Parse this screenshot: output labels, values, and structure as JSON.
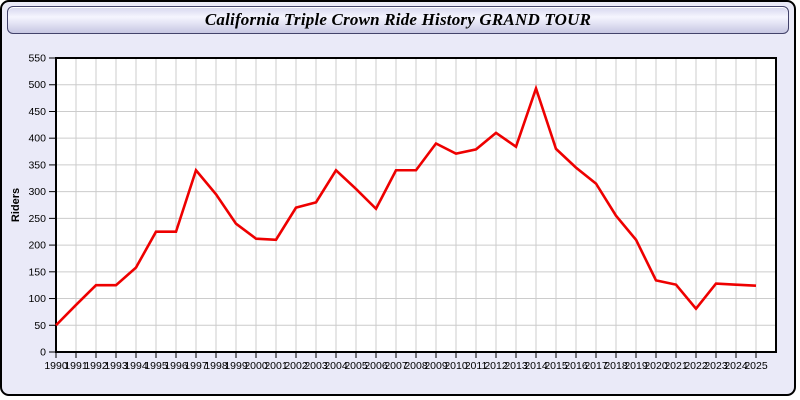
{
  "window": {
    "title": "California Triple Crown Ride History GRAND TOUR"
  },
  "chart_data": {
    "type": "line",
    "title": "California Triple Crown Ride History GRAND TOUR",
    "xlabel": "",
    "ylabel": "Riders",
    "x": [
      1990,
      1991,
      1992,
      1993,
      1994,
      1995,
      1996,
      1997,
      1998,
      1999,
      2000,
      2001,
      2002,
      2003,
      2004,
      2005,
      2006,
      2007,
      2008,
      2009,
      2010,
      2011,
      2012,
      2013,
      2014,
      2015,
      2016,
      2017,
      2018,
      2019,
      2020,
      2021,
      2022,
      2023,
      2024,
      2025
    ],
    "series": [
      {
        "name": "Riders",
        "values": [
          50,
          88,
          125,
          125,
          158,
          225,
          225,
          340,
          295,
          240,
          212,
          210,
          270,
          280,
          340,
          305,
          268,
          340,
          340,
          390,
          371,
          379,
          410,
          384,
          493,
          380,
          345,
          315,
          255,
          210,
          134,
          126,
          81,
          128,
          126,
          124
        ]
      }
    ],
    "ylim": [
      0,
      550
    ],
    "ytick_step": 50,
    "grid": true,
    "legend_position": "none"
  },
  "colors": {
    "line": "#ee0000",
    "grid": "#cccccc",
    "plot_bg": "#ffffff",
    "plot_border": "#000000",
    "panel_bg": "#eaeaf8",
    "tick_label": "#000000"
  }
}
